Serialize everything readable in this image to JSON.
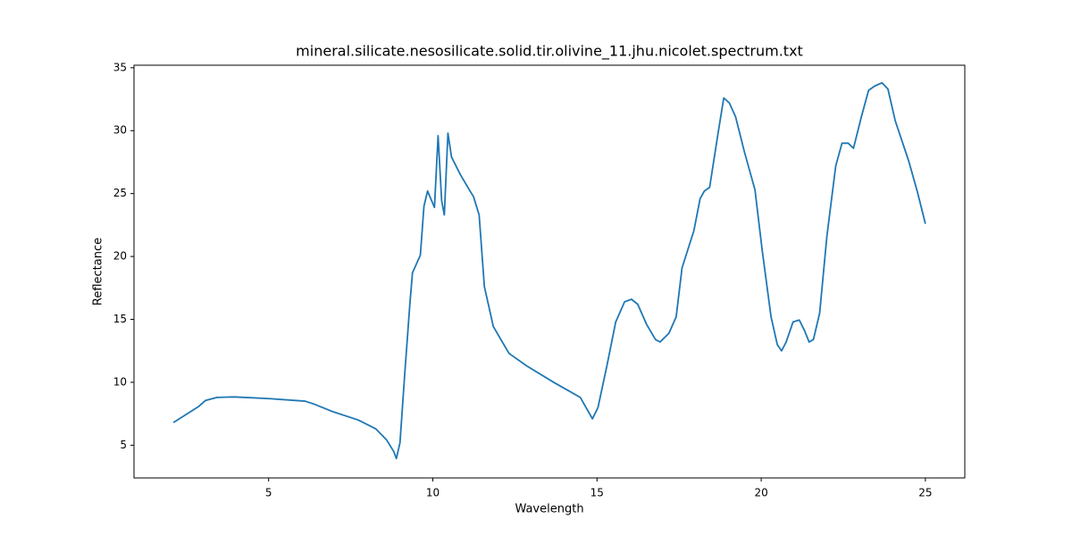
{
  "chart_data": {
    "type": "line",
    "title": "mineral.silicate.nesosilicate.solid.tir.olivine_11.jhu.nicolet.spectrum.txt",
    "x_label": "Wavelength",
    "y_label": "Reflectance",
    "xlim": [
      0.9,
      26.2
    ],
    "ylim": [
      2.4,
      35.2
    ],
    "xticks": [
      5,
      10,
      15,
      20,
      25
    ],
    "yticks": [
      5,
      10,
      15,
      20,
      25,
      30,
      35
    ],
    "grid": false,
    "series": [
      {
        "color": "#1f77b4",
        "x": [
          2.1,
          2.86,
          3.08,
          3.43,
          3.95,
          5.03,
          6.11,
          6.38,
          6.92,
          7.73,
          8.27,
          8.59,
          8.81,
          8.89,
          9.0,
          9.14,
          9.3,
          9.38,
          9.62,
          9.73,
          9.84,
          9.92,
          10.05,
          10.16,
          10.27,
          10.35,
          10.46,
          10.57,
          10.84,
          11.11,
          11.24,
          11.41,
          11.57,
          11.7,
          11.84,
          12.05,
          12.32,
          12.86,
          13.68,
          14.49,
          14.86,
          15.03,
          15.3,
          15.57,
          15.84,
          16.05,
          16.24,
          16.51,
          16.78,
          16.92,
          17.19,
          17.41,
          17.59,
          17.95,
          18.14,
          18.27,
          18.43,
          18.68,
          18.86,
          19.03,
          19.22,
          19.49,
          19.81,
          20.03,
          20.3,
          20.49,
          20.62,
          20.76,
          20.97,
          21.16,
          21.32,
          21.46,
          21.59,
          21.78,
          22.0,
          22.27,
          22.46,
          22.65,
          22.81,
          23.05,
          23.27,
          23.46,
          23.68,
          23.86,
          24.08,
          24.49,
          24.76,
          25.0
        ],
        "values": [
          6.8,
          8.06,
          8.56,
          8.8,
          8.84,
          8.7,
          8.5,
          8.27,
          7.7,
          7.0,
          6.29,
          5.43,
          4.5,
          3.94,
          5.2,
          10.5,
          16.2,
          18.7,
          20.1,
          24.0,
          25.2,
          24.7,
          23.9,
          29.6,
          24.4,
          23.3,
          29.8,
          27.9,
          26.5,
          25.3,
          24.75,
          23.3,
          17.6,
          16.1,
          14.45,
          13.5,
          12.3,
          11.3,
          10.0,
          8.8,
          7.1,
          8.0,
          11.3,
          14.8,
          16.4,
          16.6,
          16.2,
          14.6,
          13.4,
          13.2,
          13.9,
          15.2,
          19.1,
          22.05,
          24.6,
          25.2,
          25.5,
          29.7,
          32.6,
          32.2,
          31.1,
          28.3,
          25.3,
          20.5,
          15.2,
          13.0,
          12.5,
          13.2,
          14.8,
          14.95,
          14.1,
          13.2,
          13.4,
          15.5,
          21.6,
          27.2,
          29.0,
          29.0,
          28.6,
          31.1,
          33.2,
          33.55,
          33.8,
          33.3,
          30.8,
          27.6,
          25.1,
          22.6
        ]
      }
    ]
  }
}
